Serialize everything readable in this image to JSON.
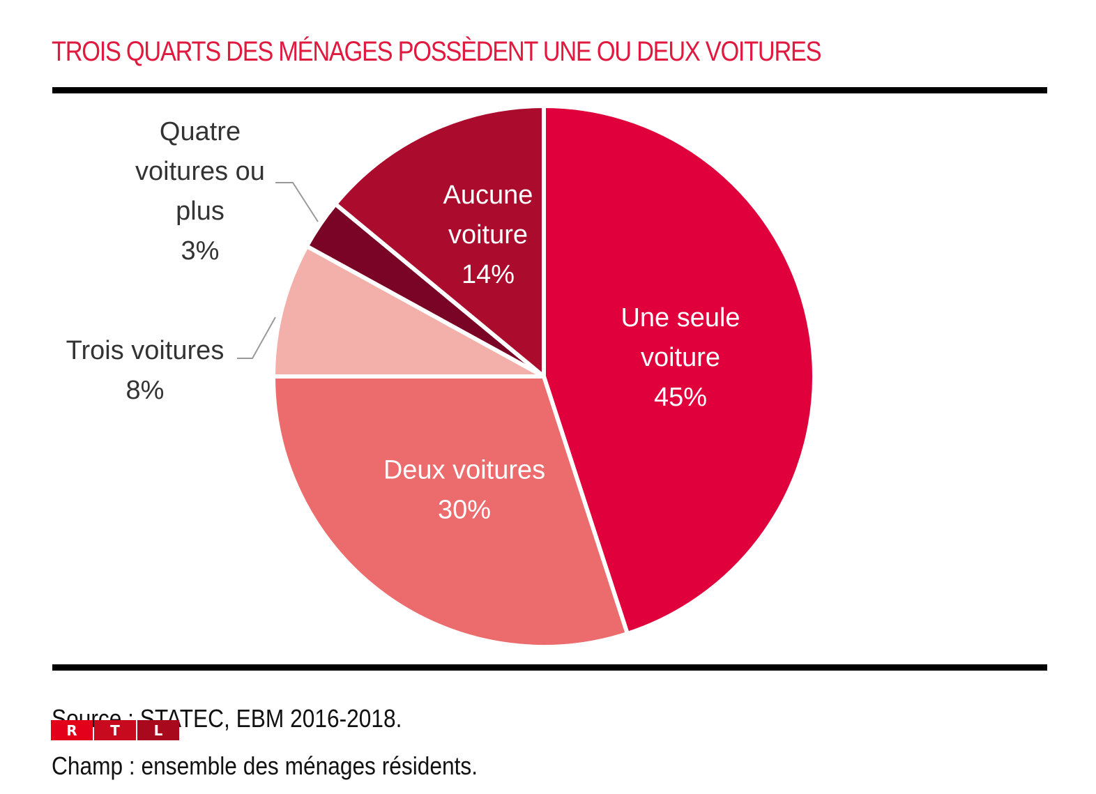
{
  "chart_data": {
    "type": "pie",
    "title": "TROIS QUARTS DES MÉNAGES POSSÈDENT UNE OU DEUX VOITURES",
    "slices": [
      {
        "name": "Une seule voiture",
        "value": 45,
        "label_lines": [
          "Une seule",
          "voiture",
          "45%"
        ],
        "color": "#e0003c",
        "label_inside": true
      },
      {
        "name": "Deux voitures",
        "value": 30,
        "label_lines": [
          "Deux voitures",
          "30%"
        ],
        "color": "#ec6b6d",
        "label_inside": true
      },
      {
        "name": "Trois voitures",
        "value": 8,
        "label_lines": [
          "Trois voitures",
          "8%"
        ],
        "color": "#f3b0aa",
        "label_inside": false
      },
      {
        "name": "Quatre voitures ou plus",
        "value": 3,
        "label_lines": [
          "Quatre",
          "voitures ou",
          "plus",
          "3%"
        ],
        "color": "#7a0426",
        "label_inside": false
      },
      {
        "name": "Aucune voiture",
        "value": 14,
        "label_lines": [
          "Aucune",
          "voiture",
          "14%"
        ],
        "color": "#ab0b2c",
        "label_inside": true
      }
    ],
    "start": "12 o'clock",
    "direction": "clockwise",
    "units": "%"
  },
  "footer": {
    "source": "Source : STATEC, EBM 2016-2018.",
    "champ": "Champ : ensemble des ménages résidents."
  },
  "logo": {
    "letters": [
      "R",
      "T",
      "L"
    ],
    "colors": [
      "#e3001b",
      "#c80a1e",
      "#a8091d"
    ]
  },
  "colors": {
    "title": "#e0193f",
    "rule": "#000000",
    "inside_label": "#ffffff",
    "outside_label": "#333333",
    "leader_line": "#999999"
  }
}
